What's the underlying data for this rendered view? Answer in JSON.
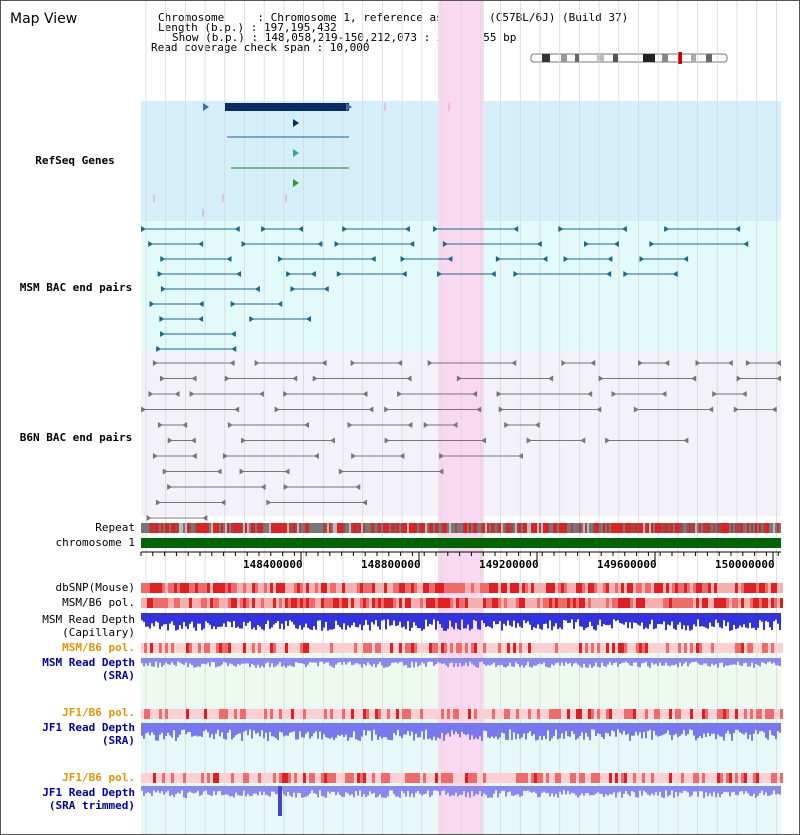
{
  "header": {
    "title": "Map View",
    "info_lines": [
      "Chromosome     : Chromosome 1, reference assembly (C57BL/6J) (Build 37)",
      "Length (b.p.) : 197,195,432",
      "Show (b.p.) : 148,058,219-150,212,073 : 2,153,855 bp",
      "Read coverage check span : 10,000"
    ]
  },
  "tracks": {
    "refseq": "RefSeq Genes",
    "msm_bac": "MSM BAC end pairs",
    "b6n_bac": "B6N BAC end pairs",
    "repeat": "Repeat",
    "chromosome": "chromosome 1",
    "dbsnp": "dbSNP(Mouse)",
    "msm_b6_pol_1": "MSM/B6 pol.",
    "msm_depth_cap_1": "MSM Read Depth",
    "msm_depth_cap_2": "(Capillary)",
    "msm_b6_pol_2": "MSM/B6 pol.",
    "msm_depth_sra_1": "MSM Read Depth",
    "msm_depth_sra_2": "(SRA)",
    "jf1_b6_pol_1": "JF1/B6 pol.",
    "jf1_depth_sra_1": "JF1 Read Depth",
    "jf1_depth_sra_2": "(SRA)",
    "jf1_b6_pol_2": "JF1/B6 pol.",
    "jf1_depth_trim_1": "JF1 Read Depth",
    "jf1_depth_trim_2": "(SRA trimmed)"
  },
  "ruler": {
    "labels": [
      "148400000",
      "148800000",
      "149200000",
      "149600000",
      "150000000"
    ]
  },
  "colors": {
    "refseq_bg": "#d4eefa",
    "msm_bg": "#e2fafa",
    "b6n_bg": "#f2f2f8",
    "highlight": "#f9d9f0",
    "refseq_label": "#0000aa",
    "msm_label": "#006699",
    "b6n_label": "#555555",
    "chromosome_bar": "#006400",
    "pol_label": "#e69500",
    "sra_label": "#0000aa"
  }
}
